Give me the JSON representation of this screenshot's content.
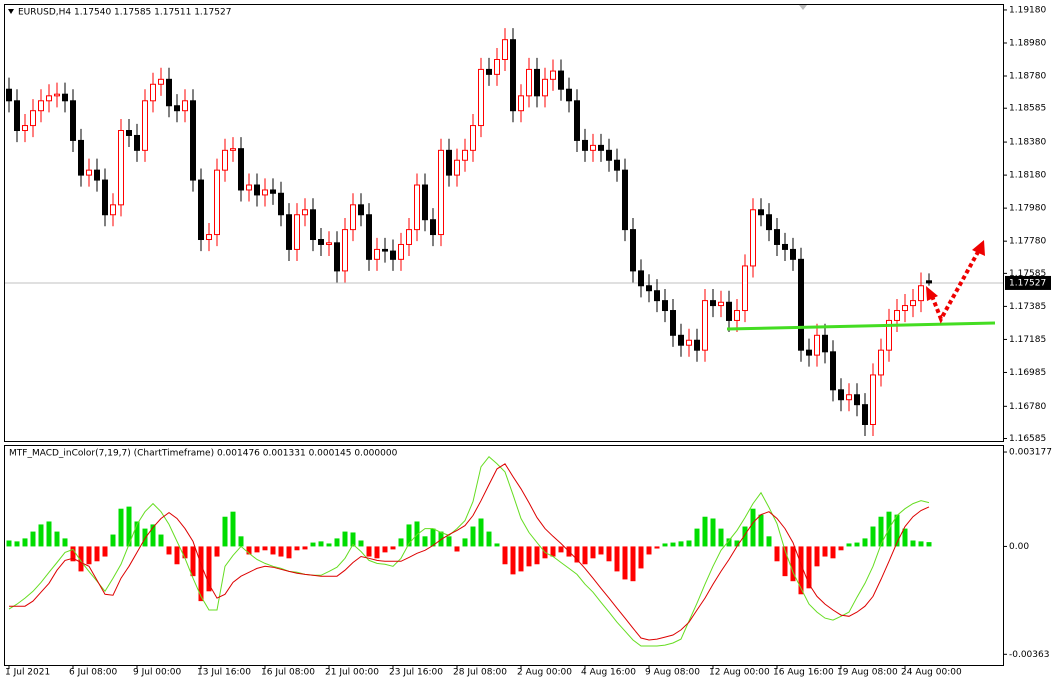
{
  "chart_data": [
    {
      "type": "candlestick",
      "title": "EURUSD,H4  1.17540 1.17585 1.17511 1.17527",
      "up_color": "#ff0000",
      "down_color": "#000000",
      "xlim": [
        -0.5,
        124.25
      ],
      "ylim": [
        1.1657,
        1.1921
      ],
      "yticks": [
        {
          "value": 1.1918,
          "label": "1.19180"
        },
        {
          "value": 1.1898,
          "label": "1.18980"
        },
        {
          "value": 1.1878,
          "label": "1.18780"
        },
        {
          "value": 1.18585,
          "label": "1.18585"
        },
        {
          "value": 1.1838,
          "label": "1.18380"
        },
        {
          "value": 1.1818,
          "label": "1.18180"
        },
        {
          "value": 1.1798,
          "label": "1.17980"
        },
        {
          "value": 1.1778,
          "label": "1.17780"
        },
        {
          "value": 1.17585,
          "label": "1.17585"
        },
        {
          "value": 1.17385,
          "label": "1.17385"
        },
        {
          "value": 1.17185,
          "label": "1.17185"
        },
        {
          "value": 1.16985,
          "label": "1.16985"
        },
        {
          "value": 1.1678,
          "label": "1.16780"
        },
        {
          "value": 1.16585,
          "label": "1.16585"
        }
      ],
      "current_price": {
        "value": 1.17527,
        "label": "1.17527"
      },
      "open": [
        1.187,
        1.1863,
        1.1845,
        1.1848,
        1.1857,
        1.1863,
        1.1866,
        1.1867,
        1.1863,
        1.1839,
        1.1818,
        1.1821,
        1.1815,
        1.1794,
        1.18,
        1.1845,
        1.1842,
        1.1833,
        1.1863,
        1.1873,
        1.1876,
        1.186,
        1.1857,
        1.1863,
        1.1815,
        1.1779,
        1.1782,
        1.1821,
        1.1833,
        1.1834,
        1.1809,
        1.1812,
        1.1806,
        1.1809,
        1.1807,
        1.1794,
        1.1773,
        1.1794,
        1.1797,
        1.1779,
        1.1776,
        1.1777,
        1.176,
        1.1785,
        1.18,
        1.1794,
        1.1767,
        1.1773,
        1.1772,
        1.1767,
        1.1776,
        1.1785,
        1.1812,
        1.1791,
        1.1782,
        1.1833,
        1.1818,
        1.1827,
        1.1833,
        1.1848,
        1.1882,
        1.1879,
        1.1888,
        1.19,
        1.1857,
        1.1866,
        1.1882,
        1.1866,
        1.1876,
        1.1881,
        1.187,
        1.1863,
        1.1839,
        1.1833,
        1.1836,
        1.1833,
        1.1827,
        1.1821,
        1.1785,
        1.176,
        1.1751,
        1.1748,
        1.1742,
        1.1736,
        1.1721,
        1.1715,
        1.1718,
        1.1712,
        1.1742,
        1.1739,
        1.1741,
        1.173,
        1.1736,
        1.1763,
        1.1797,
        1.1794,
        1.1785,
        1.1776,
        1.1773,
        1.1767,
        1.1712,
        1.1709,
        1.1721,
        1.1711,
        1.1688,
        1.1682,
        1.1685,
        1.1679,
        1.1667,
        1.1697,
        1.1712,
        1.173,
        1.1736,
        1.1739,
        1.1742,
        1.1754
      ],
      "high": [
        1.1877,
        1.187,
        1.1855,
        1.1864,
        1.187,
        1.1873,
        1.1874,
        1.1874,
        1.187,
        1.1846,
        1.1828,
        1.1828,
        1.1822,
        1.1807,
        1.1852,
        1.1852,
        1.1849,
        1.187,
        1.188,
        1.1883,
        1.1883,
        1.1867,
        1.187,
        1.187,
        1.1822,
        1.1789,
        1.1828,
        1.184,
        1.1841,
        1.1841,
        1.1819,
        1.1819,
        1.1816,
        1.1816,
        1.1814,
        1.1801,
        1.1801,
        1.1804,
        1.1804,
        1.1786,
        1.1784,
        1.1784,
        1.1792,
        1.1807,
        1.1807,
        1.1801,
        1.178,
        1.178,
        1.1779,
        1.1783,
        1.1792,
        1.1819,
        1.1819,
        1.1798,
        1.184,
        1.184,
        1.1834,
        1.184,
        1.1855,
        1.1889,
        1.1889,
        1.1895,
        1.1907,
        1.1907,
        1.1873,
        1.1889,
        1.1889,
        1.1883,
        1.1888,
        1.1888,
        1.1877,
        1.187,
        1.1846,
        1.1843,
        1.1843,
        1.184,
        1.1834,
        1.1828,
        1.1792,
        1.1767,
        1.1758,
        1.1755,
        1.1749,
        1.1743,
        1.1728,
        1.1725,
        1.1725,
        1.1749,
        1.1749,
        1.1748,
        1.1748,
        1.1743,
        1.177,
        1.1804,
        1.1804,
        1.1801,
        1.1792,
        1.1783,
        1.178,
        1.1774,
        1.1719,
        1.1728,
        1.1728,
        1.1718,
        1.1695,
        1.1692,
        1.1692,
        1.1686,
        1.1704,
        1.1719,
        1.1737,
        1.1743,
        1.1746,
        1.1749,
        1.1759,
        1.17585
      ],
      "low": [
        1.1856,
        1.1838,
        1.1838,
        1.1841,
        1.185,
        1.1856,
        1.1859,
        1.1856,
        1.1832,
        1.1811,
        1.1811,
        1.1808,
        1.1787,
        1.1787,
        1.1793,
        1.1835,
        1.1826,
        1.1826,
        1.1856,
        1.1866,
        1.1853,
        1.185,
        1.185,
        1.1808,
        1.1772,
        1.1772,
        1.1775,
        1.1814,
        1.1826,
        1.1802,
        1.1802,
        1.1799,
        1.1799,
        1.18,
        1.1787,
        1.1766,
        1.1766,
        1.1787,
        1.1772,
        1.1769,
        1.1769,
        1.1753,
        1.1753,
        1.1778,
        1.1787,
        1.176,
        1.176,
        1.1765,
        1.176,
        1.176,
        1.1769,
        1.1778,
        1.1784,
        1.1775,
        1.1775,
        1.1811,
        1.1811,
        1.182,
        1.1826,
        1.1841,
        1.1872,
        1.1872,
        1.1881,
        1.185,
        1.185,
        1.1859,
        1.1859,
        1.1859,
        1.1869,
        1.1863,
        1.1856,
        1.1832,
        1.1826,
        1.1826,
        1.1826,
        1.182,
        1.1814,
        1.1778,
        1.1753,
        1.1744,
        1.1741,
        1.1735,
        1.1729,
        1.1714,
        1.1708,
        1.1708,
        1.1705,
        1.1705,
        1.1732,
        1.1732,
        1.1723,
        1.1723,
        1.1729,
        1.1756,
        1.1787,
        1.1778,
        1.1769,
        1.1766,
        1.176,
        1.1705,
        1.1702,
        1.1702,
        1.1704,
        1.1681,
        1.1675,
        1.1675,
        1.1672,
        1.166,
        1.166,
        1.169,
        1.1705,
        1.1723,
        1.1729,
        1.1732,
        1.1735,
        1.17511
      ],
      "close": [
        1.1863,
        1.1845,
        1.1848,
        1.1857,
        1.1863,
        1.1866,
        1.1867,
        1.1863,
        1.1839,
        1.1818,
        1.1821,
        1.1815,
        1.1794,
        1.18,
        1.1845,
        1.1842,
        1.1833,
        1.1863,
        1.1873,
        1.1876,
        1.186,
        1.1857,
        1.1863,
        1.1815,
        1.1779,
        1.1782,
        1.1821,
        1.1833,
        1.1834,
        1.1809,
        1.1812,
        1.1806,
        1.1809,
        1.1807,
        1.1794,
        1.1773,
        1.1794,
        1.1797,
        1.1779,
        1.1776,
        1.1777,
        1.176,
        1.1785,
        1.18,
        1.1794,
        1.1767,
        1.1773,
        1.1772,
        1.1767,
        1.1776,
        1.1785,
        1.1812,
        1.1791,
        1.1782,
        1.1833,
        1.1818,
        1.1827,
        1.1833,
        1.1848,
        1.1882,
        1.1879,
        1.1888,
        1.19,
        1.1857,
        1.1866,
        1.1882,
        1.1866,
        1.1876,
        1.1881,
        1.187,
        1.1863,
        1.1839,
        1.1833,
        1.1836,
        1.1833,
        1.1827,
        1.1821,
        1.1785,
        1.176,
        1.1751,
        1.1748,
        1.1742,
        1.1736,
        1.1721,
        1.1715,
        1.1718,
        1.1712,
        1.1742,
        1.1739,
        1.1741,
        1.173,
        1.1736,
        1.1763,
        1.1797,
        1.1794,
        1.1785,
        1.1776,
        1.1773,
        1.1767,
        1.1712,
        1.1709,
        1.1721,
        1.1711,
        1.1688,
        1.1682,
        1.1685,
        1.1679,
        1.1667,
        1.1697,
        1.1712,
        1.173,
        1.1736,
        1.1739,
        1.1742,
        1.1751,
        1.17527
      ]
    },
    {
      "type": "macd",
      "title": "MTF_MACD_inColor(7,19,7) (ChartTimeframe) 0.001476 0.001331 0.000145 0.000000",
      "xlim": [
        -0.5,
        124.25
      ],
      "ylim": [
        -0.00399,
        0.00338
      ],
      "yticks": [
        0.003177,
        {
          "value": 0,
          "label": "0.00"
        },
        -0.00363
      ],
      "xticks": [
        {
          "value": 0,
          "label": "1 Jul 2021"
        },
        {
          "value": 8,
          "label": "6 Jul 08:00"
        },
        {
          "value": 16,
          "label": "9 Jul 00:00"
        },
        {
          "value": 24,
          "label": "13 Jul 16:00"
        },
        {
          "value": 32,
          "label": "16 Jul 08:00"
        },
        {
          "value": 40,
          "label": "21 Jul 00:00"
        },
        {
          "value": 48,
          "label": "23 Jul 16:00"
        },
        {
          "value": 56,
          "label": "28 Jul 08:00"
        },
        {
          "value": 64,
          "label": "2 Aug 00:00"
        },
        {
          "value": 72,
          "label": "4 Aug 16:00"
        },
        {
          "value": 80,
          "label": "9 Aug 08:00"
        },
        {
          "value": 88,
          "label": "12 Aug 00:00"
        },
        {
          "value": 96,
          "label": "16 Aug 16:00"
        },
        {
          "value": 104,
          "label": "19 Aug 08:00"
        },
        {
          "value": 112,
          "label": "24 Aug 00:00"
        }
      ],
      "histogram": {
        "up_color": "#00dd00",
        "down_color": "#ff0000",
        "values": [
          0.0002,
          0.00017,
          0.00027,
          0.0005,
          0.00074,
          0.00084,
          0.0005,
          0.00027,
          -0.0005,
          -0.00084,
          -0.0006,
          -0.0005,
          -0.00034,
          0.0004,
          0.00127,
          0.00134,
          0.00084,
          0.0006,
          0.00074,
          0.0004,
          -0.00027,
          -0.0006,
          -0.0004,
          -0.001,
          -0.00184,
          -0.00151,
          -0.00034,
          0.001,
          0.00117,
          0.00034,
          -0.00027,
          -0.0002,
          -0.00013,
          -0.00027,
          -0.00034,
          -0.0004,
          -0.00013,
          -0.0001,
          0.00013,
          0.00017,
          0.0001,
          0.00027,
          0.0005,
          0.00047,
          0.0002,
          -0.00034,
          -0.0004,
          -0.0002,
          -0.0001,
          0.00027,
          0.00074,
          0.00084,
          0.00034,
          0.0006,
          0.0005,
          0.00034,
          -0.00017,
          0.00027,
          0.00067,
          0.00094,
          0.0005,
          0.0001,
          -0.0006,
          -0.00094,
          -0.00084,
          -0.00067,
          -0.0006,
          -0.0004,
          -0.00034,
          -0.0002,
          -0.00034,
          -0.00054,
          -0.0006,
          -0.0004,
          -0.00027,
          -0.0005,
          -0.00084,
          -0.00111,
          -0.00117,
          -0.00074,
          -0.00027,
          -7e-05,
          0.0001,
          0.00013,
          0.00017,
          0.0002,
          0.0006,
          0.001,
          0.00094,
          0.0006,
          0.00027,
          0.0002,
          0.00067,
          0.00127,
          0.00107,
          0.00034,
          -0.0005,
          -0.001,
          -0.00117,
          -0.00161,
          -0.00141,
          -0.00067,
          -0.00034,
          -0.0004,
          -0.00013,
          0.0001,
          0.00013,
          0.00027,
          0.00067,
          0.001,
          0.00117,
          0.00107,
          0.0006,
          0.0002,
          0.00017,
          0.000145
        ]
      },
      "series": [
        {
          "color": "#66dd22",
          "values": [
            -0.00211,
            -0.00194,
            -0.00174,
            -0.00151,
            -0.00121,
            -0.00087,
            -0.00054,
            -0.0002,
            -0.0001,
            -0.0005,
            -0.00084,
            -0.00117,
            -0.00151,
            -0.00107,
            -0.0006,
            7e-05,
            0.00074,
            0.00117,
            0.00144,
            0.00117,
            0.00074,
            0.00017,
            -0.0004,
            -0.00107,
            -0.00168,
            -0.00214,
            -0.00214,
            -0.00067,
            -0.0003,
            0,
            -0.00023,
            -0.00044,
            -0.00057,
            -0.00067,
            -0.00074,
            -0.00084,
            -0.00087,
            -0.00094,
            -0.00097,
            -0.00097,
            -0.00084,
            -0.0007,
            -0.0004,
            7e-05,
            -0.00017,
            -0.00047,
            -0.00057,
            -0.0006,
            -0.00067,
            -0.0004,
            0.0001,
            0.0004,
            0.0006,
            0.0006,
            0.00047,
            0.00037,
            0.0006,
            0.00087,
            0.00151,
            0.00268,
            0.00302,
            0.00278,
            0.00251,
            0.00174,
            0.00094,
            0.00047,
            0.00013,
            -0.0002,
            -0.00034,
            -0.00054,
            -0.00074,
            -0.00094,
            -0.00127,
            -0.00154,
            -0.00188,
            -0.00221,
            -0.00255,
            -0.00285,
            -0.00315,
            -0.00335,
            -0.00335,
            -0.00335,
            -0.00332,
            -0.00325,
            -0.00312,
            -0.00251,
            -0.00191,
            -0.00127,
            -0.00067,
            -0.00013,
            0.0002,
            0.00054,
            0.00097,
            0.00144,
            0.00181,
            0.00131,
            0.00077,
            -0.00013,
            -0.00087,
            -0.00141,
            -0.00194,
            -0.00221,
            -0.00241,
            -0.00248,
            -0.00235,
            -0.00221,
            -0.00171,
            -0.00124,
            -0.00067,
            7e-05,
            0.0006,
            0.00104,
            0.00127,
            0.00144,
            0.00154,
            0.001476
          ]
        },
        {
          "color": "#dd0000",
          "values": [
            -0.00201,
            -0.00201,
            -0.00201,
            -0.00184,
            -0.00154,
            -0.00124,
            -0.0008,
            -0.00047,
            -0.0004,
            -0.00054,
            -0.00067,
            -0.00114,
            -0.00161,
            -0.00164,
            -0.00107,
            -0.00067,
            -0.0002,
            0.00027,
            0.00064,
            0.00094,
            0.00114,
            0.00094,
            0.0006,
            0.00017,
            -0.0006,
            -0.00127,
            -0.00174,
            -0.00161,
            -0.00121,
            -0.001,
            -0.00087,
            -0.00074,
            -0.00067,
            -0.0007,
            -0.00077,
            -0.00084,
            -0.0009,
            -0.00094,
            -0.00097,
            -0.001,
            -0.001,
            -0.001,
            -0.0008,
            -0.00054,
            -0.00034,
            -0.0004,
            -0.00047,
            -0.0005,
            -0.0005,
            -0.0005,
            -0.00037,
            -0.00023,
            -0.00013,
            3e-05,
            0.00023,
            0.0004,
            0.00054,
            0.0007,
            0.00104,
            0.00154,
            0.00208,
            0.00261,
            0.00278,
            0.00235,
            0.00194,
            0.00147,
            0.00097,
            0.0006,
            0.00034,
            0.0001,
            -0.00017,
            -0.00044,
            -0.00074,
            -0.00107,
            -0.00141,
            -0.00174,
            -0.00208,
            -0.00241,
            -0.00275,
            -0.00308,
            -0.00315,
            -0.00312,
            -0.00305,
            -0.00298,
            -0.00281,
            -0.00255,
            -0.00214,
            -0.00174,
            -0.00127,
            -0.00084,
            -0.00044,
            0,
            0.0004,
            0.0008,
            0.00107,
            0.00117,
            0.00094,
            0.0006,
            0.00013,
            -0.0006,
            -0.00127,
            -0.00168,
            -0.00194,
            -0.00214,
            -0.00231,
            -0.00235,
            -0.00221,
            -0.00201,
            -0.00168,
            -0.00111,
            -0.0005,
            0.00013,
            0.00067,
            0.001,
            0.00121,
            0.001331
          ]
        }
      ]
    }
  ]
}
